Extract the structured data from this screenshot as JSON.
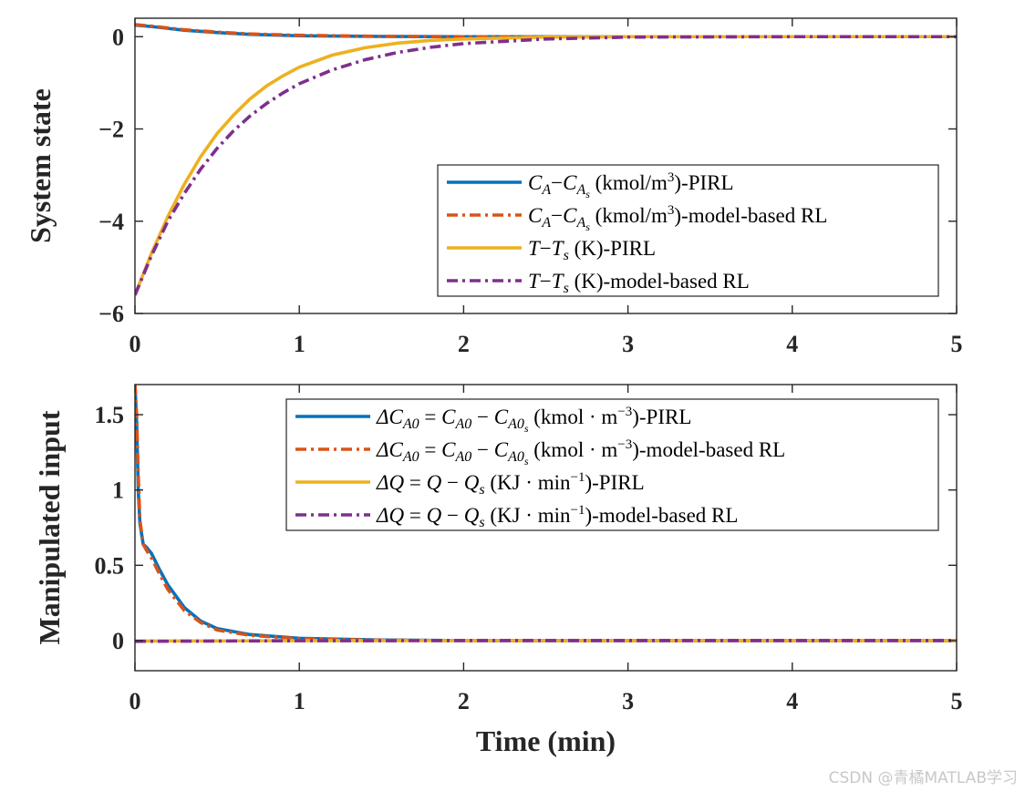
{
  "colors": {
    "pirl_ca": "#0072BD",
    "model_ca": "#D95319",
    "pirl_t": "#EDB120",
    "model_t": "#7E2F8E",
    "axis": "#262626"
  },
  "chart_data": [
    {
      "type": "line",
      "ylabel": "System state",
      "xlabel": "",
      "xlim": [
        0,
        5
      ],
      "ylim": [
        -6,
        0.4
      ],
      "xticks": [
        0,
        1,
        2,
        3,
        4,
        5
      ],
      "xtick_labels": [
        "0",
        "1",
        "2",
        "3",
        "4",
        "5"
      ],
      "yticks": [
        0,
        -2,
        -4,
        -6
      ],
      "ytick_labels": [
        "0",
        "−2",
        "−4",
        "−6"
      ],
      "legend_position": "bottom-right",
      "series": [
        {
          "name": "CA-CAs (kmol/m3)-PIRL",
          "legend": {
            "main": "C",
            "sub1": "A",
            "minus": "−",
            "main2": "C",
            "sub2": "A",
            "subsub": "s",
            "unit": "(kmol/m",
            "sup": "3",
            "suffix": ")-PIRL"
          },
          "color_key": "pirl_ca",
          "style": "solid",
          "x": [
            0,
            0.1,
            0.2,
            0.3,
            0.5,
            0.7,
            1.0,
            1.5,
            2.0,
            3.0,
            4.0,
            5.0
          ],
          "y": [
            0.25,
            0.22,
            0.18,
            0.14,
            0.09,
            0.05,
            0.02,
            0.005,
            0.0,
            0.0,
            0.0,
            0.0
          ]
        },
        {
          "name": "CA-CAs (kmol/m3)-model-based RL",
          "legend": {
            "main": "C",
            "sub1": "A",
            "minus": "−",
            "main2": "C",
            "sub2": "A",
            "subsub": "s",
            "unit": "(kmol/m",
            "sup": "3",
            "suffix": ")-model-based RL"
          },
          "color_key": "model_ca",
          "style": "dashdot",
          "x": [
            0,
            0.1,
            0.2,
            0.3,
            0.5,
            0.7,
            1.0,
            1.5,
            2.0,
            3.0,
            4.0,
            5.0
          ],
          "y": [
            0.26,
            0.23,
            0.19,
            0.15,
            0.1,
            0.06,
            0.03,
            0.008,
            0.0,
            0.0,
            0.0,
            0.0
          ]
        },
        {
          "name": "T-Ts (K)-PIRL",
          "legend": {
            "main": "T",
            "minus": "−",
            "main2": "T",
            "sub2": "s",
            "unit": "(K)",
            "suffix": "-PIRL"
          },
          "color_key": "pirl_t",
          "style": "solid",
          "x": [
            0,
            0.1,
            0.2,
            0.3,
            0.4,
            0.5,
            0.6,
            0.7,
            0.8,
            0.9,
            1.0,
            1.2,
            1.4,
            1.6,
            1.8,
            2.0,
            2.5,
            3.0,
            4.0,
            5.0
          ],
          "y": [
            -5.6,
            -4.7,
            -3.9,
            -3.2,
            -2.6,
            -2.1,
            -1.7,
            -1.35,
            -1.07,
            -0.85,
            -0.66,
            -0.4,
            -0.24,
            -0.14,
            -0.08,
            -0.05,
            -0.01,
            0.0,
            0.0,
            0.0
          ]
        },
        {
          "name": "T-Ts (K)-model-based RL",
          "legend": {
            "main": "T",
            "minus": "−",
            "main2": "T",
            "sub2": "s",
            "unit": "(K)",
            "suffix": "-model-based RL"
          },
          "color_key": "model_t",
          "style": "dashdot",
          "x": [
            0,
            0.1,
            0.2,
            0.3,
            0.4,
            0.5,
            0.6,
            0.7,
            0.8,
            0.9,
            1.0,
            1.2,
            1.4,
            1.6,
            1.8,
            2.0,
            2.5,
            3.0,
            4.0,
            5.0
          ],
          "y": [
            -5.6,
            -4.75,
            -4.0,
            -3.4,
            -2.87,
            -2.42,
            -2.04,
            -1.72,
            -1.45,
            -1.22,
            -1.02,
            -0.72,
            -0.5,
            -0.34,
            -0.23,
            -0.15,
            -0.05,
            -0.01,
            0.0,
            0.0
          ]
        }
      ]
    },
    {
      "type": "line",
      "ylabel": "Manipulated input",
      "xlabel": "Time (min)",
      "xlim": [
        0,
        5
      ],
      "ylim": [
        -0.2,
        1.7
      ],
      "xticks": [
        0,
        1,
        2,
        3,
        4,
        5
      ],
      "xtick_labels": [
        "0",
        "1",
        "2",
        "3",
        "4",
        "5"
      ],
      "yticks": [
        0,
        0.5,
        1,
        1.5
      ],
      "ytick_labels": [
        "0",
        "0.5",
        "1",
        "1.5"
      ],
      "legend_position": "top-right",
      "series": [
        {
          "name": "dCA0 = CA0 - CA0s (kmol m-3)-PIRL",
          "legend": {
            "lhs": "ΔC",
            "lhsub": "A0",
            "eq": " = ",
            "m1": "C",
            "m1sub": "A0",
            "minus": " − ",
            "m2": "C",
            "m2sub": "A0",
            "m2subsub": "s",
            "unit": "(kmol · m",
            "sup": "−3",
            "suffix": ")-PIRL"
          },
          "color_key": "pirl_ca",
          "style": "solid",
          "x": [
            0,
            0.01,
            0.02,
            0.03,
            0.05,
            0.07,
            0.1,
            0.15,
            0.2,
            0.3,
            0.4,
            0.5,
            0.7,
            1.0,
            1.5,
            2.0,
            3.0,
            4.0,
            5.0
          ],
          "y": [
            1.7,
            1.45,
            1.0,
            0.78,
            0.64,
            0.62,
            0.58,
            0.47,
            0.37,
            0.22,
            0.13,
            0.08,
            0.04,
            0.015,
            0.004,
            0.0,
            0.0,
            0.0,
            0.0
          ]
        },
        {
          "name": "dCA0 = CA0 - CA0s (kmol m-3)-model-based RL",
          "legend": {
            "lhs": "ΔC",
            "lhsub": "A0",
            "eq": " = ",
            "m1": "C",
            "m1sub": "A0",
            "minus": " − ",
            "m2": "C",
            "m2sub": "A0",
            "m2subsub": "s",
            "unit": "(kmol · m",
            "sup": "−3",
            "suffix": ")-model-based RL"
          },
          "color_key": "model_ca",
          "style": "dashdot",
          "x": [
            0,
            0.01,
            0.02,
            0.03,
            0.05,
            0.07,
            0.1,
            0.15,
            0.2,
            0.3,
            0.4,
            0.5,
            0.7,
            1.0,
            1.5,
            2.0,
            3.0,
            4.0,
            5.0
          ],
          "y": [
            1.7,
            1.5,
            1.1,
            0.8,
            0.64,
            0.6,
            0.55,
            0.44,
            0.34,
            0.2,
            0.12,
            0.07,
            0.035,
            0.012,
            0.003,
            0.0,
            0.0,
            0.0,
            0.0
          ]
        },
        {
          "name": "dQ = Q - Qs (KJ min-1)-PIRL",
          "legend": {
            "lhs": "ΔQ",
            "eq": " = ",
            "m1": "Q",
            "minus": " − ",
            "m2": "Q",
            "m2sub": "s",
            "unit": "(KJ · min",
            "sup": "−1",
            "suffix": ")-PIRL"
          },
          "color_key": "pirl_t",
          "style": "solid",
          "x": [
            0,
            0.5,
            1.0,
            2.0,
            3.0,
            4.0,
            5.0
          ],
          "y": [
            -0.003,
            -0.002,
            -0.001,
            0.0,
            0.0,
            0.0,
            0.0
          ]
        },
        {
          "name": "dQ = Q - Qs (KJ min-1)-model-based RL",
          "legend": {
            "lhs": "ΔQ",
            "eq": " = ",
            "m1": "Q",
            "minus": " − ",
            "m2": "Q",
            "m2sub": "s",
            "unit": "(KJ · min",
            "sup": "−1",
            "suffix": ")-model-based RL"
          },
          "color_key": "model_t",
          "style": "dashdot",
          "x": [
            0,
            0.5,
            1.0,
            2.0,
            3.0,
            4.0,
            5.0
          ],
          "y": [
            -0.005,
            -0.003,
            -0.001,
            0.0,
            0.0,
            0.0,
            0.0
          ]
        }
      ]
    }
  ],
  "watermark": "CSDN @青橘MATLAB学习"
}
